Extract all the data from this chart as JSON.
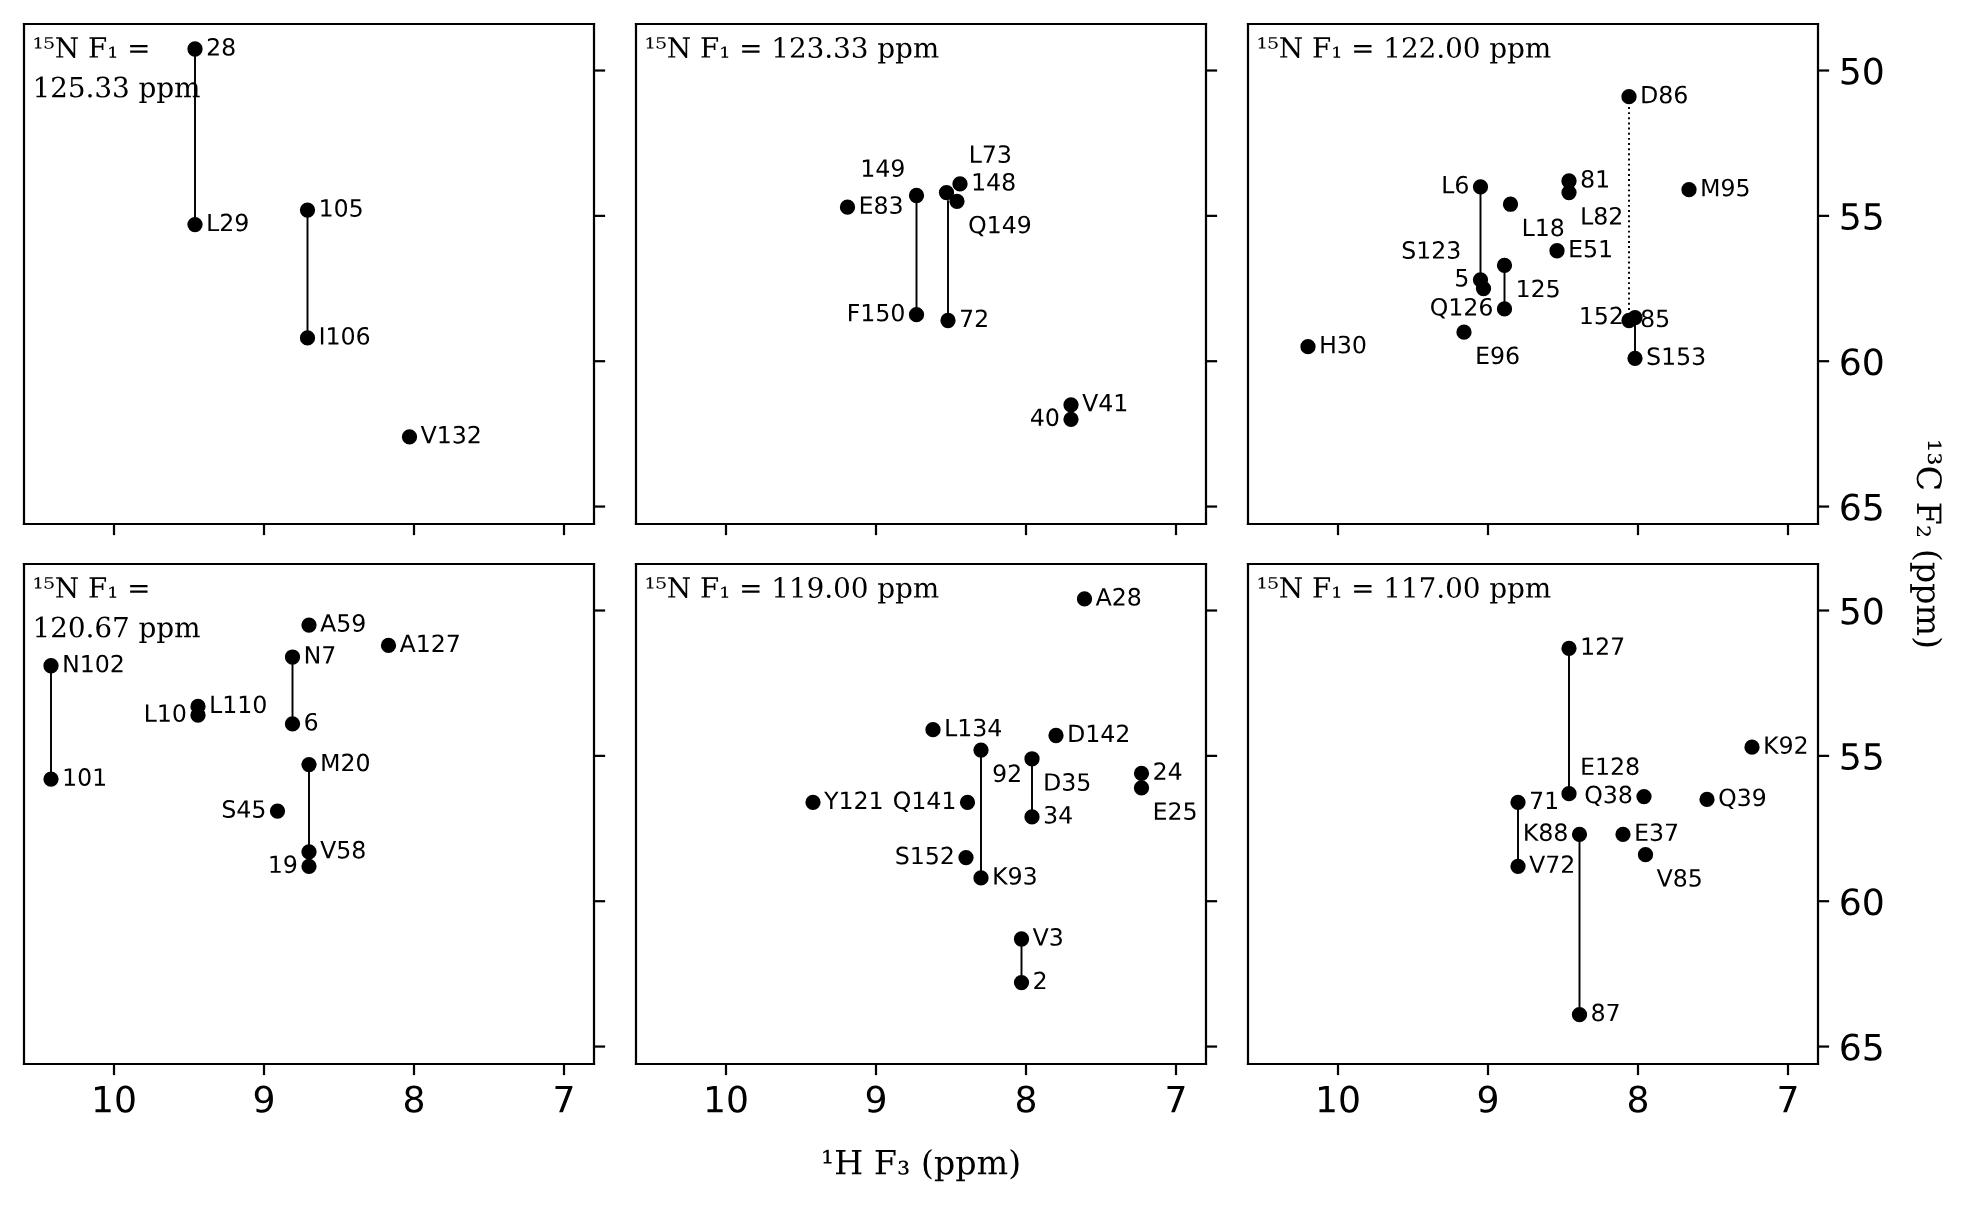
{
  "chart_data": [
    {
      "type": "scatter",
      "title": "¹⁵N F₁ =\n125.33 ppm",
      "xlim": [
        10.6,
        6.8
      ],
      "ylim": [
        65.6,
        48.4
      ],
      "xticks": [
        10,
        9,
        8,
        7
      ],
      "yticks": [
        50,
        55,
        60,
        65
      ],
      "tick_labels": false,
      "series": [
        {
          "color": "#000000",
          "marker": "circle",
          "x": [
            9.46,
            9.46,
            8.71,
            8.71,
            8.03
          ],
          "values": [
            49.26,
            55.3,
            54.8,
            59.2,
            62.6
          ]
        },
        {
          "type": "line",
          "color": "#000000",
          "x": [
            9.46,
            9.46
          ],
          "values": [
            49.26,
            55.3
          ]
        },
        {
          "type": "line",
          "color": "#000000",
          "x": [
            8.71,
            8.71
          ],
          "values": [
            54.8,
            59.2
          ]
        }
      ],
      "annotations": [
        {
          "text": "28",
          "x": 9.46,
          "y": 49.26
        },
        {
          "text": "L29",
          "x": 9.46,
          "y": 55.3
        },
        {
          "text": "105",
          "x": 8.71,
          "y": 54.8
        },
        {
          "text": "I106",
          "x": 8.71,
          "y": 59.2
        },
        {
          "text": "V132",
          "x": 8.03,
          "y": 62.6
        }
      ]
    },
    {
      "type": "scatter",
      "title": "¹⁵N F₁ = 123.33 ppm",
      "xlim": [
        10.6,
        6.8
      ],
      "ylim": [
        65.6,
        48.4
      ],
      "xticks": [
        10,
        9,
        8,
        7
      ],
      "yticks": [
        50,
        55,
        60,
        65
      ],
      "tick_labels": false,
      "series": [
        {
          "color": "#000000",
          "marker": "circle",
          "x": [
            9.19,
            8.73,
            8.53,
            8.44,
            8.46,
            8.73,
            8.52,
            7.7,
            7.7
          ],
          "values": [
            54.7,
            54.3,
            54.2,
            53.9,
            54.5,
            58.4,
            58.6,
            61.5,
            62.0
          ]
        },
        {
          "type": "line",
          "color": "#000000",
          "x": [
            8.73,
            8.73
          ],
          "values": [
            54.3,
            58.4
          ]
        },
        {
          "type": "line",
          "color": "#000000",
          "x": [
            8.52,
            8.52
          ],
          "values": [
            54.5,
            58.6
          ]
        }
      ],
      "annotations": [
        {
          "text": "E83",
          "x": 9.19,
          "y": 54.7
        },
        {
          "text": "149",
          "x": 8.73,
          "y": 54.3
        },
        {
          "text": "L73",
          "x": 8.53,
          "y": 54.2
        },
        {
          "text": "148",
          "x": 8.44,
          "y": 53.9
        },
        {
          "text": "Q149",
          "x": 8.46,
          "y": 54.5
        },
        {
          "text": "F150",
          "x": 8.73,
          "y": 58.4
        },
        {
          "text": "72",
          "x": 8.52,
          "y": 58.6
        },
        {
          "text": "V41",
          "x": 7.7,
          "y": 61.5
        },
        {
          "text": "40",
          "x": 7.7,
          "y": 62.0
        }
      ]
    },
    {
      "type": "scatter",
      "title": "¹⁵N F₁ = 122.00 ppm",
      "ylabel": "¹³C F₂ (ppm)",
      "xlim": [
        10.6,
        6.8
      ],
      "ylim": [
        65.6,
        48.4
      ],
      "xticks": [
        10,
        9,
        8,
        7
      ],
      "yticks": [
        50,
        55,
        60,
        65
      ],
      "tick_labels": "y",
      "series": [
        {
          "color": "#000000",
          "marker": "circle",
          "x": [
            8.06,
            9.05,
            8.85,
            8.46,
            8.46,
            7.66,
            8.54,
            8.89,
            9.05,
            9.03,
            8.89,
            8.06,
            8.02,
            8.02,
            9.16,
            10.2
          ],
          "values": [
            50.9,
            54.0,
            54.6,
            53.8,
            54.2,
            54.1,
            56.2,
            56.7,
            57.2,
            57.5,
            58.2,
            58.6,
            58.5,
            59.9,
            59.0,
            59.5
          ]
        },
        {
          "type": "line",
          "color": "#000000",
          "x": [
            9.05,
            9.05
          ],
          "values": [
            54.0,
            57.2
          ]
        },
        {
          "type": "line",
          "color": "#000000",
          "x": [
            8.89,
            8.89
          ],
          "values": [
            56.7,
            58.2
          ]
        },
        {
          "type": "line",
          "color": "#000000",
          "x": [
            8.02,
            8.02
          ],
          "values": [
            58.5,
            59.9
          ]
        },
        {
          "type": "line",
          "color": "#000000",
          "line_style": "dotted",
          "x": [
            8.06,
            8.06
          ],
          "values": [
            50.9,
            58.6
          ]
        }
      ],
      "annotations": [
        {
          "text": "D86",
          "x": 8.06,
          "y": 50.9
        },
        {
          "text": "L6",
          "x": 9.05,
          "y": 54.0
        },
        {
          "text": "L18",
          "x": 8.85,
          "y": 54.6
        },
        {
          "text": "81",
          "x": 8.46,
          "y": 53.8
        },
        {
          "text": "L82",
          "x": 8.46,
          "y": 54.2
        },
        {
          "text": "M95",
          "x": 7.66,
          "y": 54.1
        },
        {
          "text": "E51",
          "x": 8.54,
          "y": 56.2
        },
        {
          "text": "125",
          "x": 8.89,
          "y": 56.7
        },
        {
          "text": "5",
          "x": 9.05,
          "y": 57.2
        },
        {
          "text": "S123",
          "x": 9.03,
          "y": 57.5
        },
        {
          "text": "Q126",
          "x": 8.89,
          "y": 58.2
        },
        {
          "text": "85",
          "x": 8.06,
          "y": 58.6
        },
        {
          "text": "152",
          "x": 8.02,
          "y": 58.5
        },
        {
          "text": "S153",
          "x": 8.02,
          "y": 59.9
        },
        {
          "text": "E96",
          "x": 9.16,
          "y": 59.0
        },
        {
          "text": "H30",
          "x": 10.2,
          "y": 59.5
        }
      ]
    },
    {
      "type": "scatter",
      "title": "¹⁵N F₁ =\n120.67 ppm",
      "xlim": [
        10.6,
        6.8
      ],
      "ylim": [
        65.6,
        48.4
      ],
      "xticks": [
        10,
        9,
        8,
        7
      ],
      "yticks": [
        50,
        55,
        60,
        65
      ],
      "tick_labels": "x",
      "series": [
        {
          "color": "#000000",
          "marker": "circle",
          "x": [
            8.7,
            8.17,
            8.81,
            10.42,
            9.44,
            9.44,
            8.81,
            8.7,
            10.42,
            8.91,
            8.7,
            8.7
          ],
          "values": [
            50.5,
            51.2,
            51.6,
            51.9,
            53.3,
            53.6,
            53.9,
            55.3,
            55.8,
            56.9,
            58.3,
            58.8
          ]
        },
        {
          "type": "line",
          "color": "#000000",
          "x": [
            10.42,
            10.42
          ],
          "values": [
            51.9,
            55.8
          ]
        },
        {
          "type": "line",
          "color": "#000000",
          "x": [
            8.81,
            8.81
          ],
          "values": [
            51.6,
            53.9
          ]
        },
        {
          "type": "line",
          "color": "#000000",
          "x": [
            8.7,
            8.7
          ],
          "values": [
            55.3,
            58.8
          ]
        }
      ],
      "annotations": [
        {
          "text": "A59",
          "x": 8.7,
          "y": 50.5
        },
        {
          "text": "A127",
          "x": 8.17,
          "y": 51.2
        },
        {
          "text": "N7",
          "x": 8.81,
          "y": 51.6
        },
        {
          "text": "N102",
          "x": 10.42,
          "y": 51.9
        },
        {
          "text": "L110",
          "x": 9.44,
          "y": 53.3
        },
        {
          "text": "L10",
          "x": 9.44,
          "y": 53.6
        },
        {
          "text": "6",
          "x": 8.81,
          "y": 53.9
        },
        {
          "text": "M20",
          "x": 8.7,
          "y": 55.3
        },
        {
          "text": "101",
          "x": 10.42,
          "y": 55.8
        },
        {
          "text": "S45",
          "x": 8.91,
          "y": 56.9
        },
        {
          "text": "V58",
          "x": 8.7,
          "y": 58.3
        },
        {
          "text": "19",
          "x": 8.7,
          "y": 58.8
        }
      ]
    },
    {
      "type": "scatter",
      "title": "¹⁵N F₁ = 119.00 ppm",
      "xlabel": "¹H F₃ (ppm)",
      "xlim": [
        10.6,
        6.8
      ],
      "ylim": [
        65.6,
        48.4
      ],
      "xticks": [
        10,
        9,
        8,
        7
      ],
      "yticks": [
        50,
        55,
        60,
        65
      ],
      "tick_labels": "x",
      "series": [
        {
          "color": "#000000",
          "marker": "circle",
          "x": [
            7.61,
            8.62,
            7.8,
            8.3,
            7.96,
            7.23,
            7.23,
            9.42,
            8.39,
            7.96,
            8.4,
            8.3,
            8.03,
            8.03
          ],
          "values": [
            49.6,
            54.1,
            54.3,
            54.8,
            55.1,
            55.6,
            56.1,
            56.6,
            56.6,
            57.1,
            58.5,
            59.2,
            61.3,
            62.8
          ]
        },
        {
          "type": "line",
          "color": "#000000",
          "x": [
            8.3,
            8.3
          ],
          "values": [
            54.8,
            59.2
          ]
        },
        {
          "type": "line",
          "color": "#000000",
          "x": [
            7.96,
            7.96
          ],
          "values": [
            55.1,
            57.1
          ]
        },
        {
          "type": "line",
          "color": "#000000",
          "x": [
            8.03,
            8.03
          ],
          "values": [
            61.3,
            62.8
          ]
        }
      ],
      "annotations": [
        {
          "text": "A28",
          "x": 7.61,
          "y": 49.6
        },
        {
          "text": "L134",
          "x": 8.62,
          "y": 54.1
        },
        {
          "text": "D142",
          "x": 7.8,
          "y": 54.3
        },
        {
          "text": "92",
          "x": 8.3,
          "y": 54.8
        },
        {
          "text": "D35",
          "x": 7.96,
          "y": 55.1
        },
        {
          "text": "24",
          "x": 7.23,
          "y": 55.6
        },
        {
          "text": "E25",
          "x": 7.23,
          "y": 56.1
        },
        {
          "text": "Y121",
          "x": 9.42,
          "y": 56.6
        },
        {
          "text": "Q141",
          "x": 8.39,
          "y": 56.6
        },
        {
          "text": "34",
          "x": 7.96,
          "y": 57.1
        },
        {
          "text": "S152",
          "x": 8.4,
          "y": 58.5
        },
        {
          "text": "K93",
          "x": 8.3,
          "y": 59.2
        },
        {
          "text": "V3",
          "x": 8.03,
          "y": 61.3
        },
        {
          "text": "2",
          "x": 8.03,
          "y": 62.8
        }
      ]
    },
    {
      "type": "scatter",
      "title": "¹⁵N F₁ = 117.00 ppm",
      "xlim": [
        10.6,
        6.8
      ],
      "ylim": [
        65.6,
        48.4
      ],
      "xticks": [
        10,
        9,
        8,
        7
      ],
      "yticks": [
        50,
        55,
        60,
        65
      ],
      "series": [
        {
          "color": "#000000",
          "marker": "circle",
          "x": [
            8.46,
            7.24,
            8.46,
            7.96,
            7.54,
            8.8,
            8.39,
            8.1,
            7.95,
            8.8,
            8.39
          ],
          "values": [
            51.3,
            54.7,
            56.3,
            56.4,
            56.5,
            56.6,
            57.7,
            57.7,
            58.4,
            58.8,
            63.9
          ]
        },
        {
          "type": "line",
          "color": "#000000",
          "x": [
            8.46,
            8.46
          ],
          "values": [
            51.3,
            56.3
          ]
        },
        {
          "type": "line",
          "color": "#000000",
          "x": [
            8.8,
            8.8
          ],
          "values": [
            56.6,
            58.8
          ]
        },
        {
          "type": "line",
          "color": "#000000",
          "x": [
            8.39,
            8.39
          ],
          "values": [
            57.7,
            63.9
          ]
        }
      ],
      "annotations": [
        {
          "text": "127",
          "x": 8.46,
          "y": 51.3
        },
        {
          "text": "K92",
          "x": 7.24,
          "y": 54.7
        },
        {
          "text": "E128",
          "x": 8.46,
          "y": 56.3
        },
        {
          "text": "Q38",
          "x": 7.96,
          "y": 56.4
        },
        {
          "text": "Q39",
          "x": 7.54,
          "y": 56.5
        },
        {
          "text": "71",
          "x": 8.8,
          "y": 56.6
        },
        {
          "text": "K88",
          "x": 8.39,
          "y": 57.7
        },
        {
          "text": "E37",
          "x": 8.1,
          "y": 57.7
        },
        {
          "text": "V85",
          "x": 7.95,
          "y": 58.4
        },
        {
          "text": "V72",
          "x": 8.8,
          "y": 58.8
        },
        {
          "text": "87",
          "x": 8.39,
          "y": 63.9
        }
      ]
    }
  ]
}
